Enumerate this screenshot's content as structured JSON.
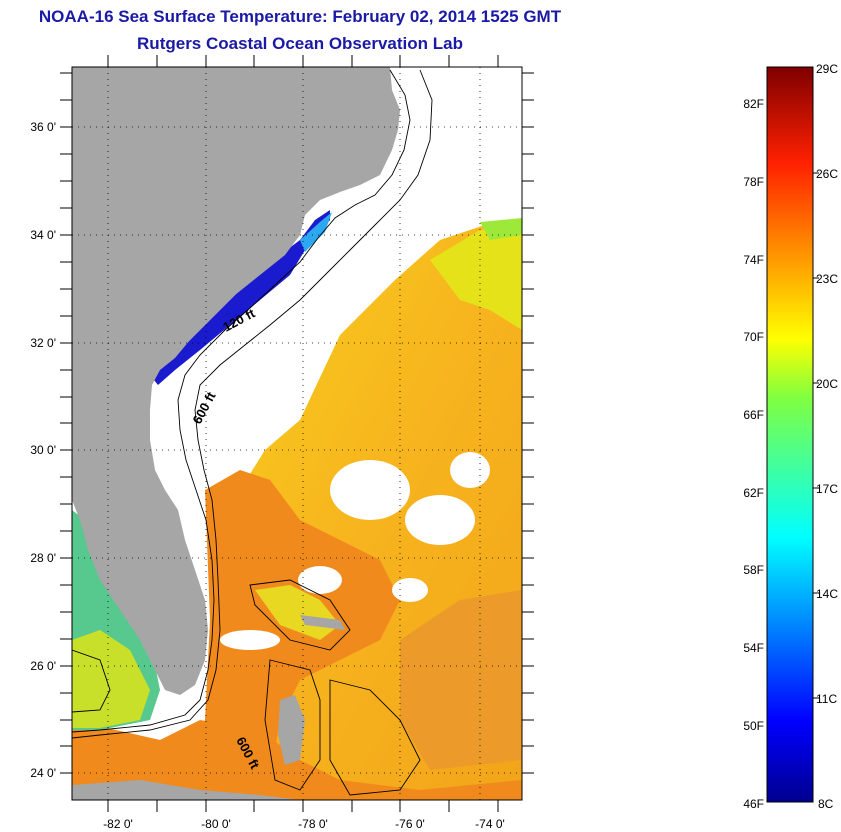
{
  "title": {
    "line1": "NOAA-16 Sea Surface Temperature:  February 02, 2014 1525 GMT",
    "line2": "Rutgers Coastal Ocean Observation Lab"
  },
  "map": {
    "lat_labels": [
      "36 0'",
      "34 0'",
      "32 0'",
      "30 0'",
      "28 0'",
      "26 0'",
      "24 0'"
    ],
    "lon_labels": [
      "-82 0'",
      "-80 0'",
      "-78 0'",
      "-76 0'",
      "-74 0'"
    ],
    "contour_labels": [
      "120 ft",
      "600 ft",
      "600 ft"
    ],
    "land_color": "#a6a6a6",
    "cloud_color": "#ffffff"
  },
  "colorbar": {
    "celsius_labels": [
      "29C",
      "26C",
      "23C",
      "20C",
      "17C",
      "14C",
      "11C",
      "8C"
    ],
    "fahrenheit_labels": [
      "82F",
      "78F",
      "74F",
      "70F",
      "66F",
      "62F",
      "58F",
      "54F",
      "50F",
      "46F"
    ],
    "range_celsius": [
      8,
      29
    ]
  }
}
